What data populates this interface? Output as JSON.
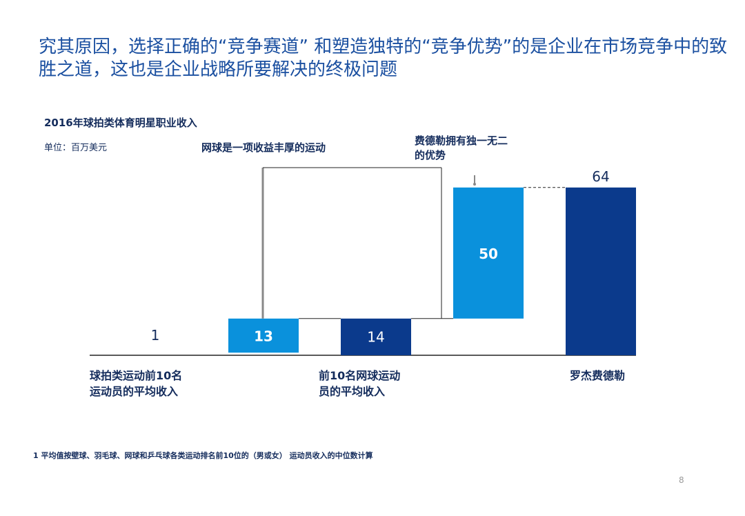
{
  "headline": "究其原因，选择正确的“竞争赛道” 和塑造独特的“竞争优势”的是企业在市场竞争中的致胜之道，这也是企业战略所要解决的终极问题",
  "colors": {
    "text_dark": "#142c5c",
    "headline": "#1a4fa0",
    "bar_light": "#0a91dc",
    "bar_dark": "#0b3a8c",
    "axis": "#222222",
    "annotation_line": "#888888"
  },
  "chart_data": {
    "type": "bar",
    "subtype": "waterfall",
    "title": "2016年球拍类体育明星职业收入",
    "unit": "单位：百万美元",
    "ylim": [
      0,
      70
    ],
    "bars": [
      {
        "id": "avg-top10-racket",
        "label": "1",
        "base": 0,
        "value": 1,
        "color": "light"
      },
      {
        "id": "tennis-increment",
        "label": "13",
        "base": 1,
        "value": 13,
        "color": "light"
      },
      {
        "id": "avg-top10-tennis",
        "label": "14",
        "base": 0,
        "value": 14,
        "color": "dark"
      },
      {
        "id": "federer-increment",
        "label": "50",
        "base": 14,
        "value": 50,
        "color": "light"
      },
      {
        "id": "federer-total",
        "label": "64",
        "base": 0,
        "value": 64,
        "color": "dark"
      }
    ],
    "category_labels": [
      {
        "text": "球拍类运动前10名\n运动员的平均收入",
        "bar_index": 0
      },
      {
        "text": "前10名网球运动\n员的平均收入",
        "bar_index": 2
      },
      {
        "text": "罗杰费德勒",
        "bar_index": 4
      }
    ],
    "annotations": [
      {
        "text": "网球是一项收益丰厚的运动",
        "bar_index": 1
      },
      {
        "text": "费德勒拥有独一无二\n的优势",
        "bar_index": 3
      }
    ],
    "footnote": "1  平均值按壁球、羽毛球、网球和乒乓球各类运动排名前10位的（男或女） 运动员收入的中位数计算"
  },
  "page_number": "8"
}
